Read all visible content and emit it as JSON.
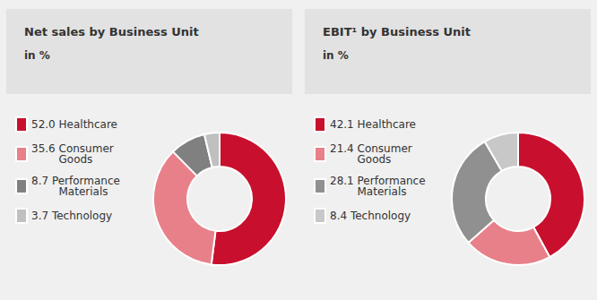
{
  "chart_data": [
    {
      "type": "donut",
      "title": "Net sales by Business Unit",
      "subtitle": "in %",
      "categories": [
        "52.0 Healthcare",
        "35.6 Consumer\n        Goods",
        "8.7 Performance\n        Materials",
        "3.7 Technology"
      ],
      "values": [
        52.0,
        35.6,
        8.7,
        3.7
      ],
      "colors": [
        "#c8102e",
        "#e8808a",
        "#808080",
        "#c0c0c0"
      ],
      "legend": "left"
    },
    {
      "type": "donut",
      "title": "EBIT¹ by Business Unit",
      "subtitle": "in %",
      "categories": [
        "42.1 Healthcare",
        "21.4 Consumer\n        Goods",
        "28.1 Performance\n        Materials",
        "8.4 Technology"
      ],
      "values": [
        42.1,
        21.4,
        28.1,
        8.4
      ],
      "colors": [
        "#c8102e",
        "#e8808a",
        "#909090",
        "#c8c8c8"
      ],
      "legend": "left"
    }
  ]
}
